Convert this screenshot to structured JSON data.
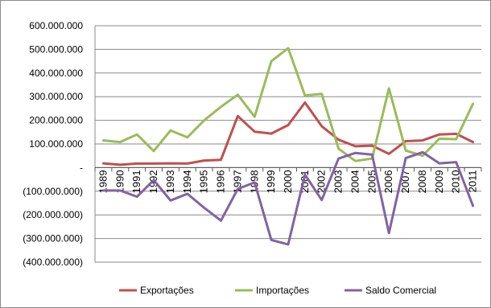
{
  "chart_data": {
    "type": "line",
    "title": "",
    "xlabel": "",
    "ylabel": "",
    "ylim": [
      -400000000,
      600000000
    ],
    "y_ticks": [
      600000000,
      500000000,
      400000000,
      300000000,
      200000000,
      100000000,
      0,
      -100000000,
      -200000000,
      -300000000,
      -400000000
    ],
    "y_tick_labels": [
      "600.000.000",
      "500.000.000",
      "400.000.000",
      "300.000.000",
      "200.000.000",
      "100.000.000",
      "-",
      "(100.000.000)",
      "(200.000.000)",
      "(300.000.000)",
      "(400.000.000)"
    ],
    "categories": [
      "1989",
      "1990",
      "1991",
      "1992",
      "1993",
      "1994",
      "1995",
      "1996",
      "1997",
      "1998",
      "1999",
      "2000",
      "2001",
      "2002",
      "2003",
      "2004",
      "2005",
      "2006",
      "2007",
      "2008",
      "2009",
      "2010",
      "2011"
    ],
    "grid": "horizontal",
    "legend_position": "bottom",
    "series": [
      {
        "name": "Exportações",
        "color": "#c0504d",
        "values": [
          18000000,
          12000000,
          17000000,
          17000000,
          18000000,
          17000000,
          30000000,
          33000000,
          218000000,
          152000000,
          144000000,
          180000000,
          275000000,
          175000000,
          118000000,
          90000000,
          93000000,
          58000000,
          112000000,
          115000000,
          140000000,
          143000000,
          108000000
        ]
      },
      {
        "name": "Importações",
        "color": "#9bbb59",
        "values": [
          115000000,
          108000000,
          140000000,
          70000000,
          157000000,
          128000000,
          200000000,
          257000000,
          308000000,
          215000000,
          450000000,
          505000000,
          305000000,
          312000000,
          80000000,
          28000000,
          38000000,
          335000000,
          72000000,
          50000000,
          122000000,
          120000000,
          270000000
        ]
      },
      {
        "name": "Saldo Comercial",
        "color": "#8064a2",
        "values": [
          -97000000,
          -97000000,
          -123000000,
          -53000000,
          -139000000,
          -111000000,
          -170000000,
          -224000000,
          -90000000,
          -63000000,
          -306000000,
          -325000000,
          -30000000,
          -137000000,
          38000000,
          62000000,
          55000000,
          -277000000,
          40000000,
          65000000,
          18000000,
          23000000,
          -162000000
        ]
      }
    ]
  }
}
